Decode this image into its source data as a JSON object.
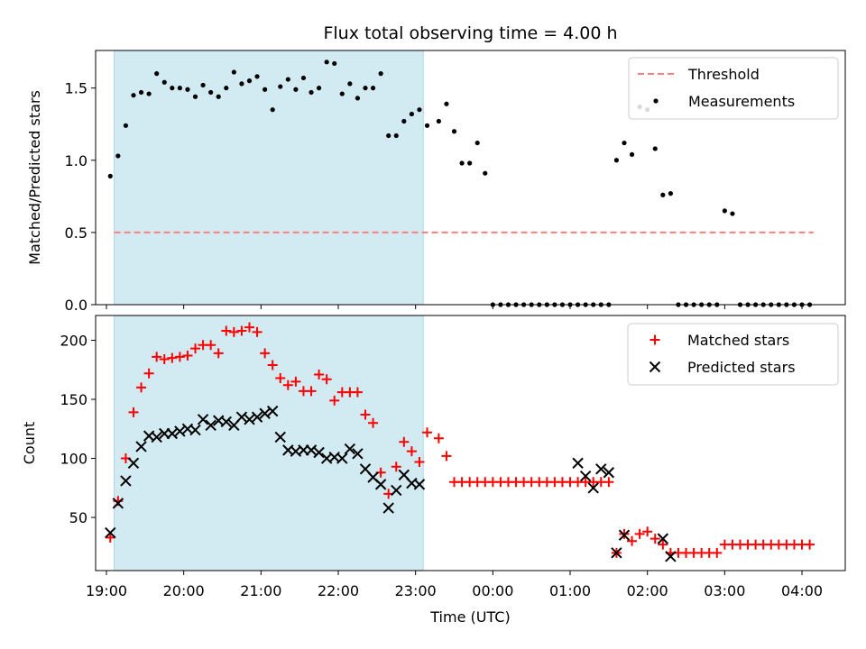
{
  "chart_data": [
    {
      "type": "scatter",
      "title": "Flux total observing time = 4.00 h",
      "xlabel": "",
      "ylabel": "Matched/Predicted stars",
      "ylim": [
        0,
        1.76
      ],
      "yticks": [
        "0.0",
        "0.5",
        "1.0",
        "1.5"
      ],
      "xticks": [],
      "legend_position": "top-right",
      "shaded_region_hours": [
        19.1,
        23.1
      ],
      "shade_color": "#add8e6",
      "threshold": {
        "name": "Threshold",
        "value": 0.5,
        "x_range_hours": [
          19.1,
          28.15
        ],
        "color": "#ff7f7f"
      },
      "series": [
        {
          "name": "Measurements",
          "color": "#000000",
          "x_hours": [
            19.05,
            19.15,
            19.25,
            19.35,
            19.45,
            19.55,
            19.65,
            19.75,
            19.85,
            19.95,
            20.05,
            20.15,
            20.25,
            20.35,
            20.45,
            20.55,
            20.65,
            20.75,
            20.85,
            20.95,
            21.05,
            21.15,
            21.25,
            21.35,
            21.45,
            21.55,
            21.65,
            21.75,
            21.85,
            21.95,
            22.05,
            22.15,
            22.25,
            22.35,
            22.45,
            22.55,
            22.65,
            22.75,
            22.85,
            22.95,
            23.05,
            23.15,
            23.3,
            23.4,
            23.5,
            23.6,
            23.7,
            23.8,
            23.9,
            24.0,
            24.1,
            24.2,
            24.3,
            24.4,
            24.5,
            24.6,
            24.7,
            24.8,
            24.9,
            25.0,
            25.1,
            25.2,
            25.3,
            25.4,
            25.5,
            25.6,
            25.7,
            25.8,
            25.9,
            26.0,
            26.1,
            26.2,
            26.3,
            26.4,
            26.5,
            26.6,
            26.7,
            26.8,
            26.9,
            27.0,
            27.1,
            27.2,
            27.3,
            27.4,
            27.5,
            27.6,
            27.7,
            27.8,
            27.9,
            28.0,
            28.1
          ],
          "y": [
            0.89,
            1.03,
            1.24,
            1.45,
            1.47,
            1.46,
            1.6,
            1.54,
            1.5,
            1.5,
            1.49,
            1.44,
            1.52,
            1.47,
            1.44,
            1.5,
            1.61,
            1.53,
            1.55,
            1.58,
            1.49,
            1.35,
            1.51,
            1.56,
            1.49,
            1.57,
            1.47,
            1.5,
            1.68,
            1.67,
            1.46,
            1.53,
            1.43,
            1.5,
            1.5,
            1.6,
            1.17,
            1.17,
            1.27,
            1.32,
            1.35,
            1.24,
            1.27,
            1.39,
            1.2,
            0.98,
            0.98,
            1.12,
            0.91,
            0,
            0,
            0,
            0,
            0,
            0,
            0,
            0,
            0,
            0,
            0,
            0,
            0,
            0,
            0,
            0,
            1.0,
            1.12,
            1.04,
            1.37,
            1.35,
            1.08,
            0.76,
            0.77,
            0,
            0,
            0,
            0,
            0,
            0,
            0.65,
            0.63,
            0,
            0,
            0,
            0,
            0,
            0,
            0,
            0,
            0,
            0
          ]
        }
      ]
    },
    {
      "type": "scatter",
      "title": "",
      "xlabel": "Time (UTC)",
      "ylabel": "Count",
      "ylim": [
        5,
        221
      ],
      "yticks": [
        "50",
        "100",
        "150",
        "200"
      ],
      "xticks": [
        "19:00",
        "20:00",
        "21:00",
        "22:00",
        "23:00",
        "00:00",
        "01:00",
        "02:00",
        "03:00",
        "04:00"
      ],
      "legend_position": "top-right",
      "shaded_region_hours": [
        19.1,
        23.1
      ],
      "shade_color": "#add8e6",
      "series": [
        {
          "name": "Matched stars",
          "color": "#ff0000",
          "marker": "+",
          "x_hours": [
            19.05,
            19.15,
            19.25,
            19.35,
            19.45,
            19.55,
            19.65,
            19.75,
            19.85,
            19.95,
            20.05,
            20.15,
            20.25,
            20.35,
            20.45,
            20.55,
            20.65,
            20.75,
            20.85,
            20.95,
            21.05,
            21.15,
            21.25,
            21.35,
            21.45,
            21.55,
            21.65,
            21.75,
            21.85,
            21.95,
            22.05,
            22.15,
            22.25,
            22.35,
            22.45,
            22.55,
            22.65,
            22.75,
            22.85,
            22.95,
            23.05,
            23.15,
            23.3,
            23.4,
            23.5,
            23.6,
            23.7,
            23.8,
            23.9,
            24.0,
            24.1,
            24.2,
            24.3,
            24.4,
            24.5,
            24.6,
            24.7,
            24.8,
            24.9,
            25.0,
            25.1,
            25.2,
            25.3,
            25.4,
            25.5,
            25.6,
            25.7,
            25.8,
            25.9,
            26.0,
            26.1,
            26.2,
            26.3,
            26.4,
            26.5,
            26.6,
            26.7,
            26.8,
            26.9,
            27.0,
            27.1,
            27.2,
            27.3,
            27.4,
            27.5,
            27.6,
            27.7,
            27.8,
            27.9,
            28.0,
            28.1
          ],
          "y": [
            33,
            64,
            100,
            139,
            160,
            172,
            186,
            184,
            185,
            186,
            187,
            193,
            196,
            196,
            189,
            208,
            207,
            208,
            211,
            207,
            189,
            179,
            168,
            162,
            165,
            157,
            157,
            171,
            167,
            149,
            156,
            156,
            156,
            137,
            130,
            88,
            70,
            93,
            114,
            106,
            97,
            122,
            117,
            102,
            80,
            80,
            80,
            80,
            80,
            80,
            80,
            80,
            80,
            80,
            80,
            80,
            80,
            80,
            80,
            80,
            80,
            80,
            80,
            80,
            80,
            20,
            36,
            30,
            36,
            38,
            32,
            27,
            20,
            20,
            20,
            20,
            20,
            20,
            20,
            27,
            27,
            27,
            27,
            27,
            27,
            27,
            27,
            27,
            27,
            27,
            27
          ]
        },
        {
          "name": "Predicted stars",
          "color": "#000000",
          "marker": "x",
          "x_hours": [
            19.05,
            19.15,
            19.25,
            19.35,
            19.45,
            19.55,
            19.65,
            19.75,
            19.85,
            19.95,
            20.05,
            20.15,
            20.25,
            20.35,
            20.45,
            20.55,
            20.65,
            20.75,
            20.85,
            20.95,
            21.05,
            21.15,
            21.25,
            21.35,
            21.45,
            21.55,
            21.65,
            21.75,
            21.85,
            21.95,
            22.05,
            22.15,
            22.25,
            22.35,
            22.45,
            22.55,
            22.65,
            22.75,
            22.85,
            22.95,
            23.05,
            25.1,
            25.2,
            25.3,
            25.4,
            25.5,
            25.6,
            25.7,
            26.2,
            26.3
          ],
          "y": [
            37,
            62,
            81,
            96,
            110,
            119,
            118,
            121,
            121,
            123,
            125,
            124,
            133,
            128,
            132,
            131,
            128,
            135,
            133,
            135,
            138,
            140,
            118,
            107,
            106,
            107,
            107,
            105,
            100,
            101,
            100,
            108,
            104,
            91,
            84,
            78,
            58,
            73,
            86,
            79,
            78,
            96,
            85,
            75,
            91,
            88,
            20,
            35,
            32,
            17
          ]
        }
      ]
    }
  ]
}
